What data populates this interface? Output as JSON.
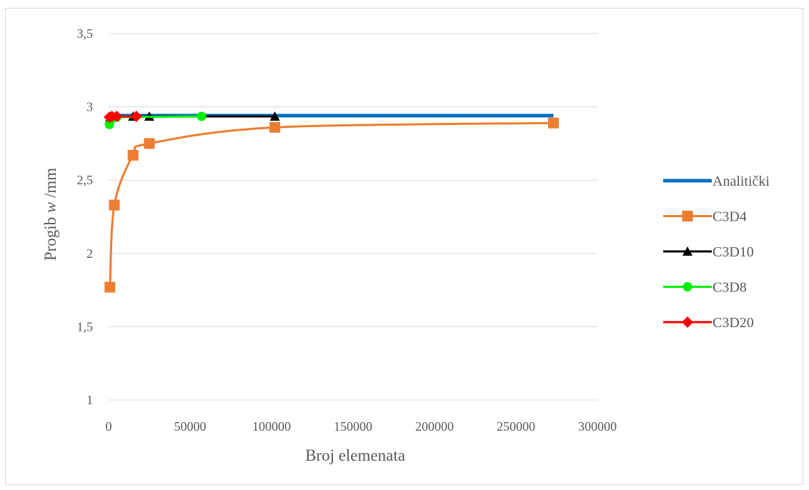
{
  "chart_data": {
    "type": "scatter",
    "title": "",
    "xlabel": "Broj elemenata",
    "ylabel_prefix": "Progib ",
    "ylabel_var": "w",
    "ylabel_suffix": " /mm",
    "xlim": [
      0,
      300000
    ],
    "ylim": [
      1,
      3.5
    ],
    "grid": "horizontal",
    "legend_position": "right",
    "x_ticks": [
      {
        "value": 0,
        "label": "0"
      },
      {
        "value": 50000,
        "label": "50000"
      },
      {
        "value": 100000,
        "label": "100000"
      },
      {
        "value": 150000,
        "label": "150000"
      },
      {
        "value": 200000,
        "label": "200000"
      },
      {
        "value": 250000,
        "label": "250000"
      },
      {
        "value": 300000,
        "label": "300000"
      }
    ],
    "y_ticks": [
      {
        "value": 1,
        "label": "1"
      },
      {
        "value": 1.5,
        "label": "1,5"
      },
      {
        "value": 2,
        "label": "2"
      },
      {
        "value": 2.5,
        "label": "2,5"
      },
      {
        "value": 3,
        "label": "3"
      },
      {
        "value": 3.5,
        "label": "3,5"
      }
    ],
    "series": [
      {
        "name": "Analitički",
        "color": "#0070c0",
        "marker": "none",
        "line": "straight",
        "points": [
          [
            0,
            2.94
          ],
          [
            273000,
            2.94
          ]
        ]
      },
      {
        "name": "C3D4",
        "color": "#ed7d31",
        "marker": "square",
        "line": "smooth",
        "points": [
          [
            800,
            1.77
          ],
          [
            3500,
            2.33
          ],
          [
            15000,
            2.67
          ],
          [
            25000,
            2.75
          ],
          [
            102000,
            2.86
          ],
          [
            273000,
            2.89
          ]
        ]
      },
      {
        "name": "C3D10",
        "color": "#000000",
        "marker": "triangle",
        "line": "straight",
        "points": [
          [
            800,
            2.925
          ],
          [
            3500,
            2.93
          ],
          [
            15000,
            2.935
          ],
          [
            25000,
            2.935
          ],
          [
            102000,
            2.935
          ]
        ]
      },
      {
        "name": "C3D8",
        "color": "#00ee00",
        "marker": "circle",
        "line": "straight",
        "points": [
          [
            500,
            2.88
          ],
          [
            2000,
            2.92
          ],
          [
            5000,
            2.93
          ],
          [
            57000,
            2.935
          ]
        ]
      },
      {
        "name": "C3D20",
        "color": "#ff0000",
        "marker": "diamond",
        "line": "straight",
        "points": [
          [
            500,
            2.93
          ],
          [
            2000,
            2.935
          ],
          [
            5000,
            2.935
          ],
          [
            17000,
            2.935
          ]
        ]
      }
    ]
  }
}
